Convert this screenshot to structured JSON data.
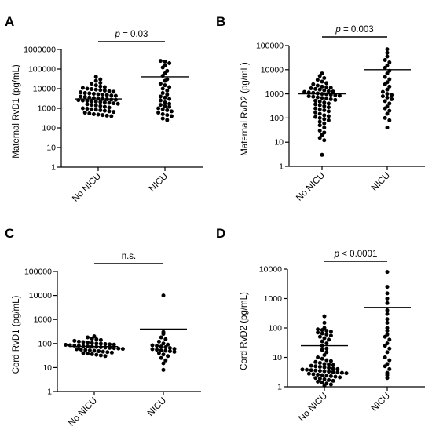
{
  "chart_data": [
    {
      "panel": "A",
      "type": "scatter",
      "ylabel": "Maternal RvD1 (pg/mL)",
      "yscale": "log",
      "ylim": [
        1,
        1000000
      ],
      "yticks": [
        "1",
        "10",
        "100",
        "1000",
        "10000",
        "100000",
        "1000000"
      ],
      "categories": [
        "No NICU",
        "NICU"
      ],
      "significance": {
        "prefix": "p",
        "text": " = 0.03"
      },
      "groups": [
        {
          "category": "No NICU",
          "mean": 3000,
          "values": [
            40000,
            30000,
            25000,
            20000,
            18000,
            15000,
            13000,
            12000,
            11000,
            10000,
            9500,
            9000,
            8500,
            8000,
            7500,
            7000,
            6500,
            6000,
            5800,
            5500,
            5200,
            5000,
            4800,
            4500,
            4300,
            4000,
            3800,
            3600,
            3400,
            3200,
            3000,
            2900,
            2800,
            2700,
            2600,
            2500,
            2400,
            2300,
            2200,
            2100,
            2000,
            1900,
            1800,
            1700,
            1600,
            1500,
            1400,
            1300,
            1200,
            1100,
            1000,
            950,
            900,
            850,
            800,
            750,
            700,
            650,
            600,
            550,
            500,
            480,
            450,
            420,
            400
          ]
        },
        {
          "category": "NICU",
          "mean": 40000,
          "values": [
            260000,
            240000,
            200000,
            150000,
            120000,
            80000,
            60000,
            45000,
            30000,
            25000,
            18000,
            15000,
            12000,
            10000,
            8000,
            6000,
            5000,
            4000,
            3500,
            3000,
            2500,
            2000,
            1700,
            1500,
            1300,
            1200,
            1000,
            900,
            800,
            700,
            600,
            500,
            450,
            400,
            300,
            250
          ]
        }
      ]
    },
    {
      "panel": "B",
      "type": "scatter",
      "ylabel": "Maternal RvD2 (pg/mL)",
      "yscale": "log",
      "ylim": [
        1,
        100000
      ],
      "yticks": [
        "1",
        "10",
        "100",
        "1000",
        "10000",
        "100000"
      ],
      "categories": [
        "No NICU",
        "NICU"
      ],
      "significance": {
        "prefix": "p",
        "text": " = 0.003"
      },
      "groups": [
        {
          "category": "No NICU",
          "mean": 1000,
          "values": [
            7000,
            5500,
            4500,
            3800,
            3200,
            2800,
            2500,
            2200,
            2000,
            1900,
            1800,
            1700,
            1600,
            1500,
            1400,
            1300,
            1250,
            1200,
            1150,
            1100,
            1050,
            1000,
            960,
            920,
            880,
            840,
            800,
            760,
            720,
            680,
            640,
            600,
            560,
            520,
            480,
            440,
            400,
            370,
            340,
            310,
            280,
            250,
            230,
            210,
            190,
            170,
            150,
            130,
            120,
            110,
            100,
            90,
            80,
            70,
            60,
            50,
            40,
            30,
            25,
            20,
            15,
            12,
            3
          ]
        },
        {
          "category": "NICU",
          "mean": 10000,
          "values": [
            70000,
            50000,
            35000,
            25000,
            20000,
            15000,
            12000,
            9000,
            7000,
            5000,
            4000,
            3000,
            2500,
            2000,
            1500,
            1200,
            1000,
            900,
            800,
            700,
            600,
            500,
            400,
            300,
            250,
            200,
            150,
            100,
            80,
            40
          ]
        }
      ]
    },
    {
      "panel": "C",
      "type": "scatter",
      "ylabel": "Cord RvD1 (pg/mL)",
      "yscale": "log",
      "ylim": [
        1,
        100000
      ],
      "yticks": [
        "1",
        "10",
        "100",
        "1000",
        "10000",
        "100000"
      ],
      "categories": [
        "No NICU",
        "NICU"
      ],
      "significance": {
        "prefix": "",
        "text": "n.s."
      },
      "groups": [
        {
          "category": "No NICU",
          "mean": 75,
          "values": [
            200,
            180,
            160,
            150,
            140,
            130,
            120,
            115,
            110,
            105,
            100,
            98,
            95,
            92,
            90,
            88,
            85,
            82,
            80,
            78,
            76,
            74,
            72,
            70,
            68,
            66,
            64,
            62,
            60,
            58,
            56,
            54,
            52,
            50,
            48,
            46,
            44,
            42,
            40,
            38,
            36,
            34,
            32,
            30
          ]
        },
        {
          "category": "NICU",
          "mean": 400,
          "values": [
            10000,
            300,
            250,
            180,
            150,
            120,
            100,
            90,
            85,
            80,
            75,
            70,
            65,
            60,
            58,
            55,
            52,
            50,
            48,
            45,
            40,
            35,
            30,
            25,
            20,
            15,
            8
          ]
        }
      ]
    },
    {
      "panel": "D",
      "type": "scatter",
      "ylabel": "Cord RvD2 (pg/mL)",
      "yscale": "log",
      "ylim": [
        1,
        10000
      ],
      "yticks": [
        "1",
        "10",
        "100",
        "1000",
        "10000"
      ],
      "categories": [
        "No NICU",
        "NICU"
      ],
      "significance": {
        "prefix": "p",
        "text": " < 0.0001"
      },
      "groups": [
        {
          "category": "No NICU",
          "mean": 25,
          "values": [
            250,
            150,
            100,
            90,
            85,
            80,
            75,
            70,
            65,
            60,
            55,
            50,
            45,
            40,
            35,
            30,
            25,
            20,
            18,
            15,
            12,
            10,
            9,
            8,
            7.5,
            7,
            6.5,
            6,
            5.8,
            5.5,
            5.2,
            5,
            4.8,
            4.6,
            4.4,
            4.2,
            4,
            3.9,
            3.8,
            3.7,
            3.6,
            3.5,
            3.4,
            3.3,
            3.2,
            3.1,
            3,
            2.9,
            2.8,
            2.7,
            2.6,
            2.5,
            2.4,
            2.3,
            2.2,
            2.1,
            2,
            1.9,
            1.8,
            1.7,
            1.6,
            1.5,
            1.4,
            1.3,
            1.2,
            1.1
          ]
        },
        {
          "category": "NICU",
          "mean": 500,
          "values": [
            8000,
            2500,
            1500,
            1000,
            700,
            400,
            300,
            200,
            150,
            100,
            80,
            60,
            50,
            40,
            30,
            25,
            20,
            15,
            10,
            8,
            6,
            5,
            4,
            3,
            2.5,
            2
          ]
        }
      ]
    }
  ]
}
